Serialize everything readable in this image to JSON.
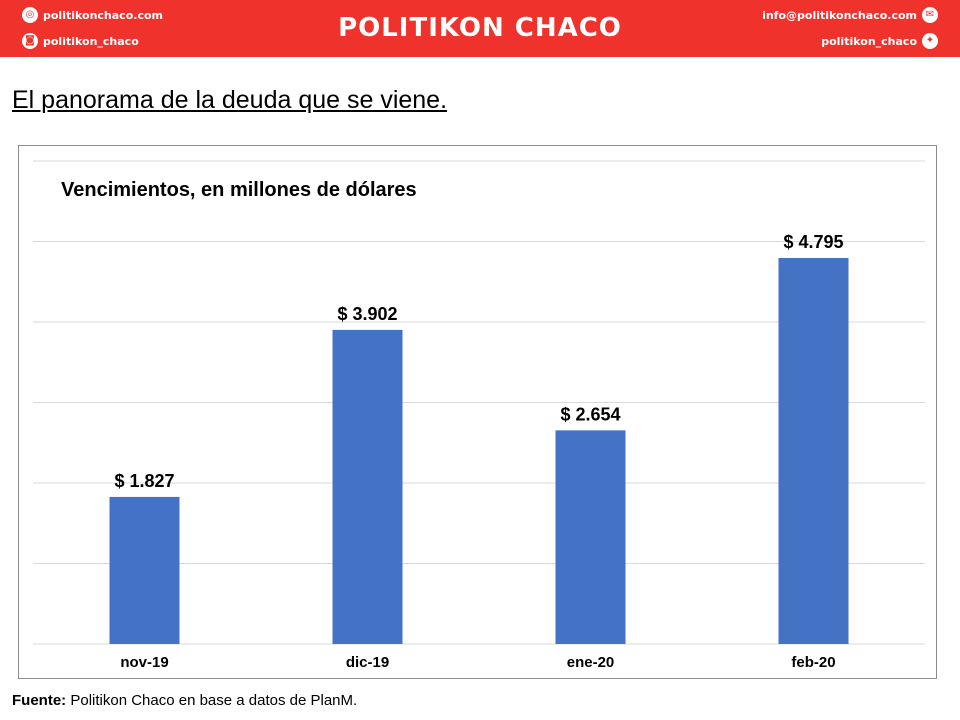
{
  "header": {
    "brand": "POLITIKON CHACO",
    "website": "politikonchaco.com",
    "instagram": "politikon_chaco",
    "email": "info@politikonchaco.com",
    "twitter": "politikon_chaco",
    "color": "#f0322c"
  },
  "headline": "El panorama de la deuda que se viene.",
  "source": {
    "label": "Fuente:",
    "text": "Politikon Chaco en base a datos de PlanM."
  },
  "chart_data": {
    "type": "bar",
    "title": "Vencimientos, en millones de dólares",
    "categories": [
      "nov-19",
      "dic-19",
      "ene-20",
      "feb-20"
    ],
    "values": [
      1827,
      3902,
      2654,
      4795
    ],
    "data_labels": [
      "$ 1.827",
      "$ 3.902",
      "$ 2.654",
      "$ 4.795"
    ],
    "ylim": [
      0,
      6000
    ],
    "grid": true,
    "bar_color": "#4472c4",
    "grid_color": "#d9d9d9"
  }
}
